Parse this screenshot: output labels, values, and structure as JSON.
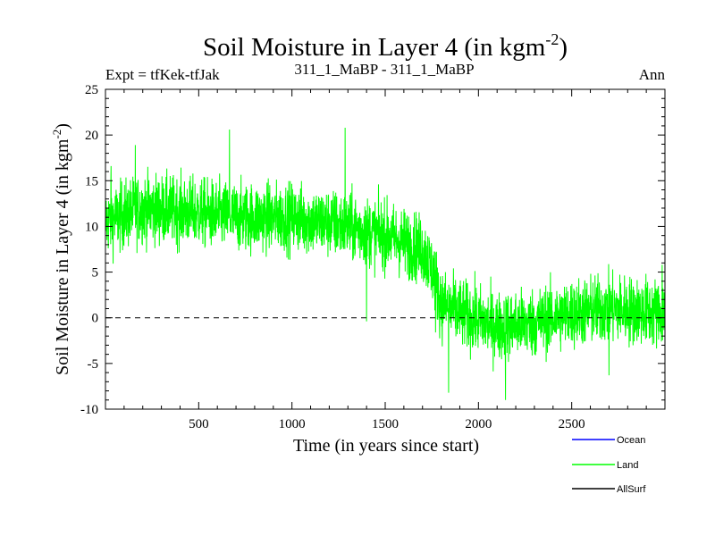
{
  "chart_data": {
    "type": "line",
    "title": "Soil Moisture in Layer 4 (in kgm",
    "title_sup": "-2",
    "title_close": ")",
    "left_label": "Expt = tfKek-tfJak",
    "center_label": "311_1_MaBP - 311_1_MaBP",
    "right_label": "Ann",
    "xlabel": "Time (in years since start)",
    "ylabel": "Soil Moisture in Layer 4 (in kgm",
    "ylabel_sup": "-2",
    "ylabel_close": ")",
    "xlim": [
      0,
      3000
    ],
    "ylim": [
      -10,
      25
    ],
    "xticks": [
      500,
      1000,
      1500,
      2000,
      2500
    ],
    "yticks": [
      -10,
      -5,
      0,
      5,
      10,
      15,
      20,
      25
    ],
    "zero_line": "dashed",
    "legend_position": "bottom-right",
    "noise_amplitude": 3.2,
    "series": [
      {
        "name": "Ocean",
        "color": "#0000ff",
        "trend": []
      },
      {
        "name": "Land",
        "color": "#00ff00",
        "trend": [
          [
            0,
            10.5
          ],
          [
            200,
            12
          ],
          [
            500,
            11.5
          ],
          [
            700,
            11
          ],
          [
            1000,
            11
          ],
          [
            1300,
            10
          ],
          [
            1500,
            9
          ],
          [
            1700,
            7.5
          ],
          [
            1760,
            5
          ],
          [
            1800,
            1.5
          ],
          [
            1900,
            0.5
          ],
          [
            2100,
            -1
          ],
          [
            2300,
            -0.5
          ],
          [
            2500,
            0.5
          ],
          [
            2700,
            1
          ],
          [
            3000,
            0.5
          ]
        ],
        "spikes": [
          [
            1285,
            20.8
          ],
          [
            665,
            20.6
          ],
          [
            1400,
            -0.4
          ],
          [
            1770,
            -1.6
          ],
          [
            1840,
            -8.2
          ],
          [
            2145,
            -9
          ],
          [
            2700,
            -6.3
          ],
          [
            2985,
            5.8
          ],
          [
            30,
            16.6
          ],
          [
            160,
            18.9
          ]
        ]
      },
      {
        "name": "AllSurf",
        "color": "#000000",
        "trend": []
      }
    ]
  }
}
